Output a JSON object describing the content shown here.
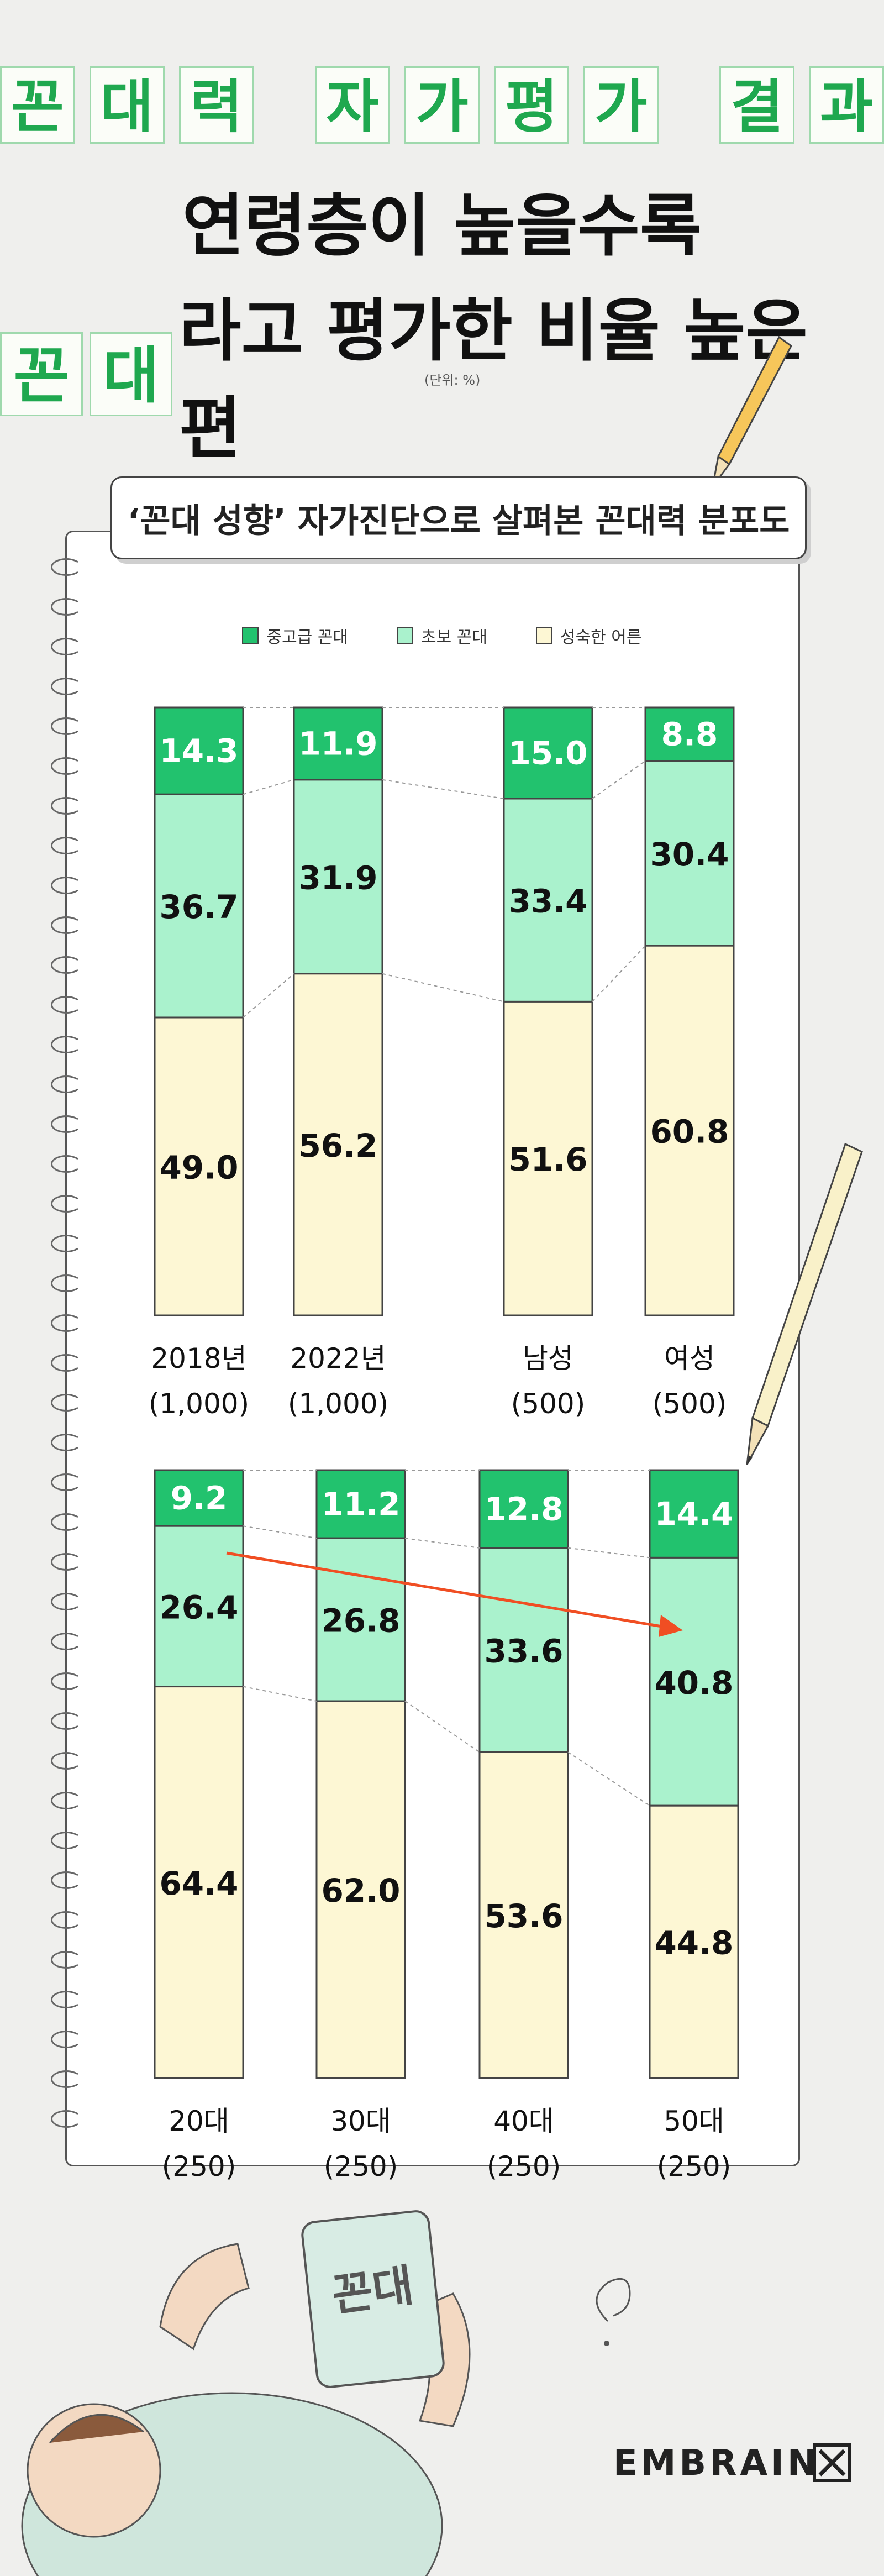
{
  "header": {
    "title_chars": [
      "꼰",
      "대",
      "력",
      "",
      "자",
      "가",
      "평",
      "가",
      "",
      "결",
      "과"
    ],
    "line2": "연령층이 높을수록",
    "line3_boxes": [
      "꼰",
      "대"
    ],
    "line3_rest": "라고 평가한 비율 높은 편",
    "unit": "(단위: %)"
  },
  "subtitle": "‘꼰대 성향’ 자가진단으로 살펴본 꼰대력 분포도",
  "colors": {
    "advanced": "#22c26e",
    "beginner": "#aaf2cd",
    "mature": "#fdf7d4",
    "arrow": "#f04e23"
  },
  "tablet_text": "꼰대",
  "logo": "EMBRAIN",
  "chart_data": [
    {
      "type": "bar",
      "stacked": true,
      "ylim": [
        0,
        100
      ],
      "legend": "top",
      "series": [
        {
          "name": "중고급 꼰대",
          "values": [
            14.3,
            11.9,
            15.0,
            8.8
          ]
        },
        {
          "name": "초보 꼰대",
          "values": [
            36.7,
            31.9,
            33.4,
            30.4
          ]
        },
        {
          "name": "성숙한 어른",
          "values": [
            49.0,
            56.2,
            51.6,
            60.8
          ]
        }
      ],
      "categories": [
        "2018년",
        "2022년",
        "남성",
        "여성"
      ],
      "sample_sizes": [
        "(1,000)",
        "(1,000)",
        "(500)",
        "(500)"
      ]
    },
    {
      "type": "bar",
      "stacked": true,
      "ylim": [
        0,
        100
      ],
      "series": [
        {
          "name": "중고급 꼰대",
          "values": [
            9.2,
            11.2,
            12.8,
            14.4
          ]
        },
        {
          "name": "초보 꼰대",
          "values": [
            26.4,
            26.8,
            33.6,
            40.8
          ]
        },
        {
          "name": "성숙한 어른",
          "values": [
            64.4,
            62.0,
            53.6,
            44.8
          ]
        }
      ],
      "categories": [
        "20대",
        "30대",
        "40대",
        "50대"
      ],
      "sample_sizes": [
        "(250)",
        "(250)",
        "(250)",
        "(250)"
      ]
    }
  ]
}
